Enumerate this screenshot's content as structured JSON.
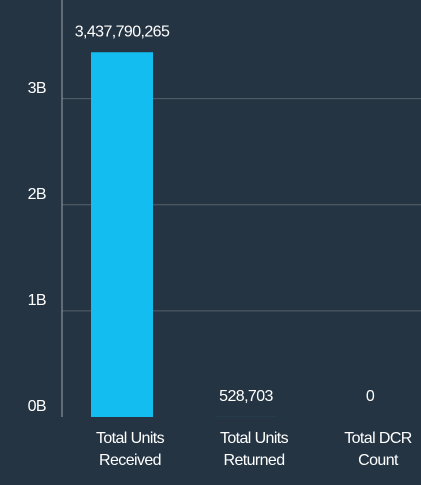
{
  "chart_data": {
    "type": "bar",
    "categories": [
      "Total Units Received",
      "Total Units Returned",
      "Total DCR Count"
    ],
    "values": [
      3437790265,
      528703,
      0
    ],
    "value_labels": [
      "3,437,790,265",
      "528,703",
      "0"
    ],
    "color": "#13bdf0",
    "ylim": [
      0,
      3930000000
    ],
    "yticks": [
      {
        "value": 0,
        "label": "0B"
      },
      {
        "value": 1000000000,
        "label": "1B"
      },
      {
        "value": 2000000000,
        "label": "2B"
      },
      {
        "value": 3000000000,
        "label": "3B"
      }
    ],
    "grid": true
  }
}
